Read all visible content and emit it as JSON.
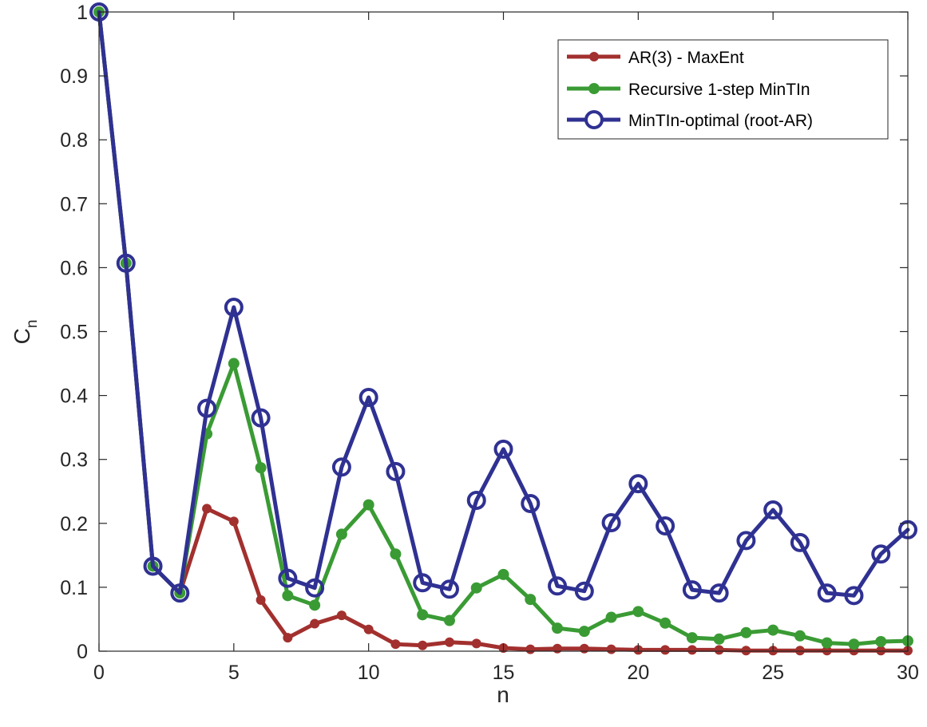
{
  "chart_data": {
    "type": "line",
    "xlabel": "n",
    "ylabel": "C",
    "ylabel_subscript": "n",
    "xlim": [
      0,
      30
    ],
    "ylim": [
      0,
      1
    ],
    "xticks": [
      0,
      5,
      10,
      15,
      20,
      25,
      30
    ],
    "yticks": [
      0,
      0.1,
      0.2,
      0.3,
      0.4,
      0.5,
      0.6,
      0.7,
      0.8,
      0.9,
      1
    ],
    "xtick_labels": [
      "0",
      "5",
      "10",
      "15",
      "20",
      "25",
      "30"
    ],
    "ytick_labels": [
      "0",
      "0.1",
      "0.2",
      "0.3",
      "0.4",
      "0.5",
      "0.6",
      "0.7",
      "0.8",
      "0.9",
      "1"
    ],
    "grid": false,
    "legend_position": "top-right",
    "x": [
      0,
      1,
      2,
      3,
      4,
      5,
      6,
      7,
      8,
      9,
      10,
      11,
      12,
      13,
      14,
      15,
      16,
      17,
      18,
      19,
      20,
      21,
      22,
      23,
      24,
      25,
      26,
      27,
      28,
      29,
      30
    ],
    "series": [
      {
        "name": "AR(3) - MaxEnt",
        "color": "#a2302e",
        "marker": "dot",
        "values": [
          1.0,
          0.607,
          0.133,
          0.091,
          0.223,
          0.203,
          0.08,
          0.021,
          0.043,
          0.056,
          0.034,
          0.011,
          0.009,
          0.014,
          0.012,
          0.005,
          0.003,
          0.004,
          0.004,
          0.003,
          0.002,
          0.002,
          0.002,
          0.002,
          0.001,
          0.001,
          0.001,
          0.001,
          0.001,
          0.001,
          0.001
        ]
      },
      {
        "name": "Recursive 1-step MinTIn",
        "color": "#3a9b34",
        "marker": "star",
        "values": [
          1.0,
          0.607,
          0.133,
          0.091,
          0.34,
          0.45,
          0.287,
          0.087,
          0.072,
          0.183,
          0.229,
          0.152,
          0.057,
          0.048,
          0.099,
          0.12,
          0.081,
          0.036,
          0.031,
          0.053,
          0.062,
          0.044,
          0.021,
          0.019,
          0.029,
          0.033,
          0.024,
          0.013,
          0.011,
          0.015,
          0.016
        ]
      },
      {
        "name": "MinTIn-optimal (root-AR)",
        "color": "#2f3192",
        "marker": "circle",
        "values": [
          1.0,
          0.607,
          0.133,
          0.091,
          0.38,
          0.538,
          0.365,
          0.114,
          0.099,
          0.288,
          0.397,
          0.281,
          0.107,
          0.097,
          0.236,
          0.316,
          0.231,
          0.102,
          0.094,
          0.201,
          0.262,
          0.196,
          0.096,
          0.091,
          0.173,
          0.221,
          0.17,
          0.091,
          0.087,
          0.152,
          0.19
        ]
      }
    ]
  }
}
